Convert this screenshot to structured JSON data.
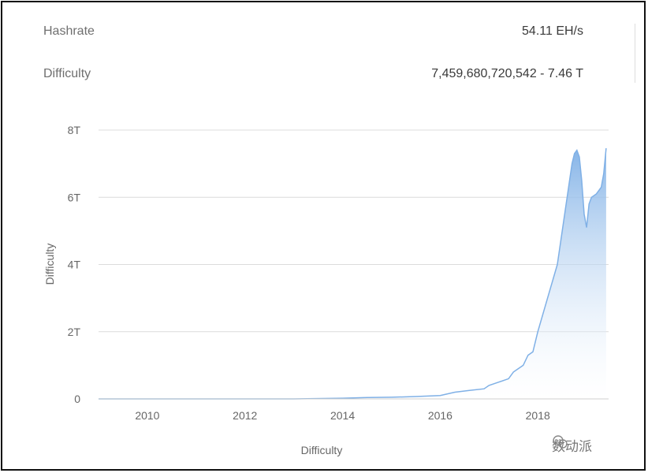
{
  "stats": {
    "hashrate_label": "Hashrate",
    "hashrate_value": "54.11 EH/s",
    "difficulty_label": "Difficulty",
    "difficulty_value": "7,459,680,720,542 - 7.46 T"
  },
  "watermark": {
    "text": "数动派"
  },
  "colors": {
    "line": "#7fb0e6",
    "fill_top": "#7fb0e6",
    "fill_bottom": "#ffffff",
    "grid": "#dcdcdc",
    "axis_text": "#666666"
  },
  "chart_data": {
    "type": "area",
    "title": "",
    "xlabel": "Difficulty",
    "ylabel": "Difficulty",
    "xlim": [
      2009,
      2019.45
    ],
    "ylim": [
      0,
      8
    ],
    "y_unit": "T",
    "x_ticks": [
      2010,
      2012,
      2014,
      2016,
      2018
    ],
    "x_tick_labels": [
      "2010",
      "2012",
      "2014",
      "2016",
      "2018"
    ],
    "y_ticks": [
      0,
      2,
      4,
      6,
      8
    ],
    "y_tick_labels": [
      "0",
      "2T",
      "4T",
      "6T",
      "8T"
    ],
    "grid": true,
    "legend": "none",
    "x": [
      2009.0,
      2011.0,
      2013.0,
      2014.0,
      2014.5,
      2015.0,
      2015.5,
      2016.0,
      2016.3,
      2016.6,
      2016.9,
      2017.0,
      2017.2,
      2017.4,
      2017.5,
      2017.6,
      2017.7,
      2017.8,
      2017.9,
      2018.0,
      2018.1,
      2018.2,
      2018.3,
      2018.4,
      2018.5,
      2018.6,
      2018.7,
      2018.75,
      2018.8,
      2018.85,
      2018.9,
      2018.95,
      2019.0,
      2019.05,
      2019.1,
      2019.2,
      2019.3,
      2019.35,
      2019.4
    ],
    "y": [
      0.0,
      0.0,
      0.0,
      0.02,
      0.04,
      0.05,
      0.07,
      0.1,
      0.2,
      0.25,
      0.3,
      0.4,
      0.5,
      0.6,
      0.8,
      0.9,
      1.0,
      1.3,
      1.4,
      2.0,
      2.5,
      3.0,
      3.5,
      4.0,
      5.0,
      6.0,
      7.0,
      7.3,
      7.4,
      7.2,
      6.5,
      5.5,
      5.1,
      5.8,
      6.0,
      6.1,
      6.3,
      6.7,
      7.46
    ]
  }
}
